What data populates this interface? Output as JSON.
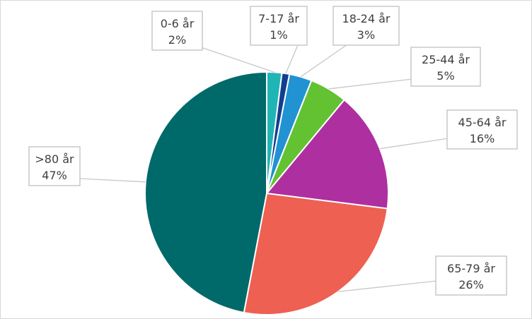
{
  "chart_data": {
    "type": "pie",
    "title": "",
    "slices": [
      {
        "label": "0-6 år",
        "pct_label": "2%",
        "value": 2,
        "color": "#20B5B5"
      },
      {
        "label": "7-17 år",
        "pct_label": "1%",
        "value": 1,
        "color": "#123E8F"
      },
      {
        "label": "18-24 år",
        "pct_label": "3%",
        "value": 3,
        "color": "#2192D2"
      },
      {
        "label": "25-44 år",
        "pct_label": "5%",
        "value": 5,
        "color": "#62C232"
      },
      {
        "label": "45-64 år",
        "pct_label": "16%",
        "value": 16,
        "color": "#AE2FA0"
      },
      {
        "label": "65-79 år",
        "pct_label": "26%",
        "value": 26,
        "color": "#EE6052"
      },
      {
        "label": ">80 år",
        "pct_label": "47%",
        "value": 47,
        "color": "#00696A"
      }
    ],
    "legend": "none",
    "data_labels": "callouts"
  }
}
